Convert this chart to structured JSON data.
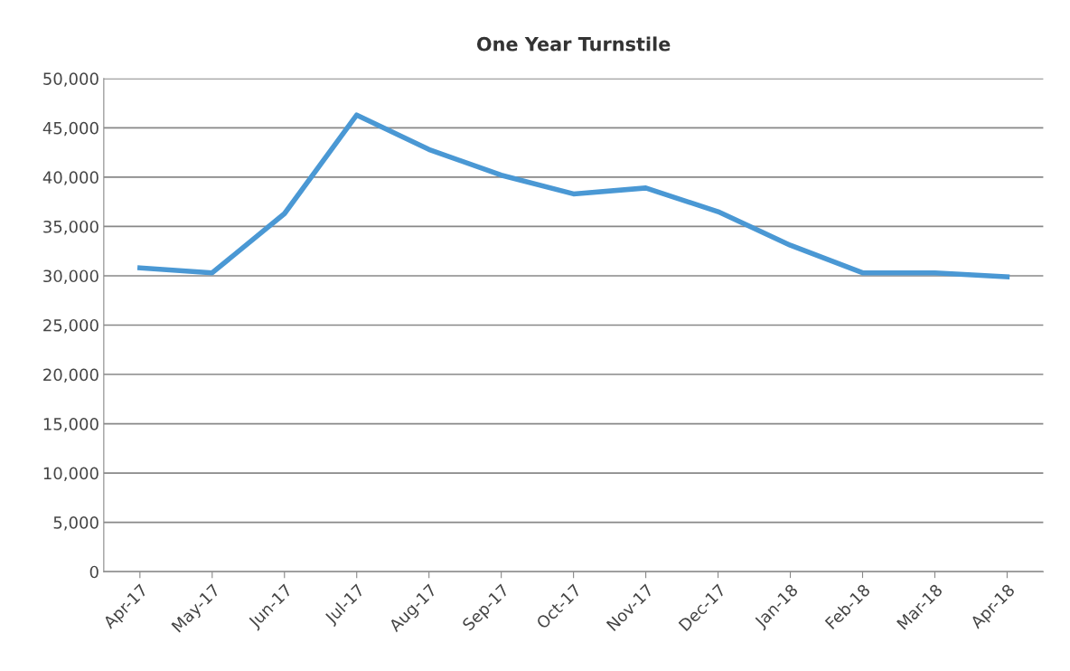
{
  "chart_data": {
    "type": "line",
    "title": "One Year Turnstile",
    "categories": [
      "Apr-17",
      "May-17",
      "Jun-17",
      "Jul-17",
      "Aug-17",
      "Sep-17",
      "Oct-17",
      "Nov-17",
      "Dec-17",
      "Jan-18",
      "Feb-18",
      "Mar-18",
      "Apr-18"
    ],
    "series": [
      {
        "color": "#4a98d4",
        "values": [
          30800,
          30300,
          36300,
          46300,
          42800,
          40200,
          38300,
          38900,
          36500,
          33100,
          30300,
          30300,
          29900
        ]
      }
    ],
    "ylim": [
      0,
      50000
    ],
    "yticks": [
      {
        "value": 0,
        "label": "0"
      },
      {
        "value": 5000,
        "label": "5,000"
      },
      {
        "value": 10000,
        "label": "10,000"
      },
      {
        "value": 15000,
        "label": "15,000"
      },
      {
        "value": 20000,
        "label": "20,000"
      },
      {
        "value": 25000,
        "label": "25,000"
      },
      {
        "value": 30000,
        "label": "30,000"
      },
      {
        "value": 35000,
        "label": "35,000"
      },
      {
        "value": 40000,
        "label": "40,000"
      },
      {
        "value": 45000,
        "label": "45,000"
      },
      {
        "value": 50000,
        "label": "50,000"
      }
    ],
    "grid": "y",
    "marker": "none",
    "line_style": "solid"
  }
}
